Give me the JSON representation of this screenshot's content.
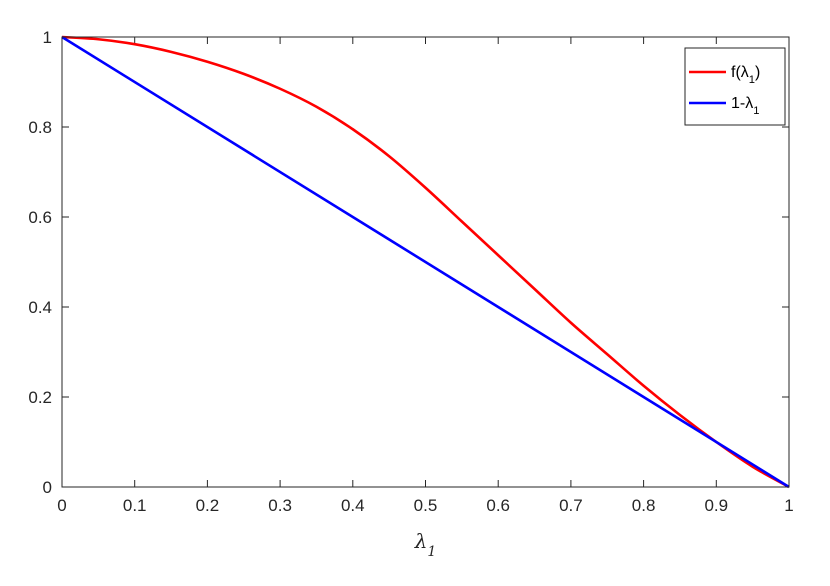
{
  "chart_data": {
    "type": "line",
    "xlabel": "λ1",
    "xlim": [
      0,
      1
    ],
    "ylim": [
      0,
      1
    ],
    "xticks": [
      "0",
      "0.1",
      "0.2",
      "0.3",
      "0.4",
      "0.5",
      "0.6",
      "0.7",
      "0.8",
      "0.9",
      "1"
    ],
    "yticks": [
      "0",
      "0.2",
      "0.4",
      "0.6",
      "0.8",
      "1"
    ],
    "grid": false,
    "legend_position": "top-right",
    "series": [
      {
        "name": "f(λ1)",
        "color": "#ff0000",
        "x": [
          0,
          0.05,
          0.1,
          0.15,
          0.2,
          0.25,
          0.3,
          0.35,
          0.4,
          0.45,
          0.5,
          0.55,
          0.6,
          0.65,
          0.7,
          0.75,
          0.8,
          0.85,
          0.9,
          0.95,
          1
        ],
        "values": [
          1.0,
          0.995,
          0.984,
          0.967,
          0.945,
          0.918,
          0.885,
          0.845,
          0.795,
          0.735,
          0.665,
          0.59,
          0.515,
          0.44,
          0.365,
          0.295,
          0.225,
          0.16,
          0.1,
          0.045,
          0
        ]
      },
      {
        "name": "1-λ1",
        "color": "#0000ff",
        "x": [
          0,
          1
        ],
        "values": [
          1,
          0
        ]
      }
    ]
  }
}
